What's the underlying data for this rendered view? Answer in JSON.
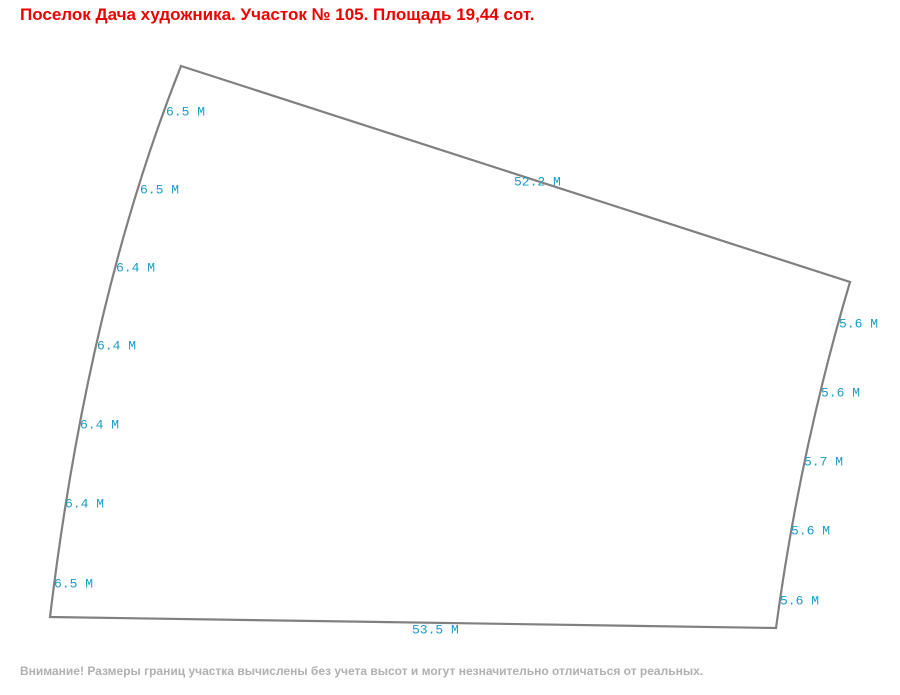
{
  "header": {
    "title": "Поселок Дача художника. Участок № 105. Площадь 19,44 сот."
  },
  "plot": {
    "edges": {
      "left": [
        "6.5 М",
        "6.5 М",
        "6.4 М",
        "6.4 М",
        "6.4 М",
        "6.4 М",
        "6.5 М"
      ],
      "top": [
        "52.2 М"
      ],
      "right": [
        "5.6 М",
        "5.6 М",
        "5.7 М",
        "5.6 М",
        "5.6 М"
      ],
      "bottom": [
        "53.5 М"
      ]
    }
  },
  "footer": {
    "note": "Внимание! Размеры границ участка вычислены без учета высот и могут незначительно отличаться от реальных."
  }
}
